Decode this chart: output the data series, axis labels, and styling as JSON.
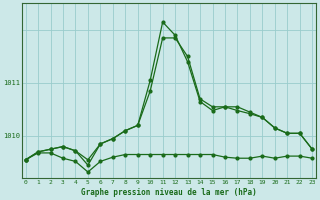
{
  "title": "Graphe pression niveau de la mer (hPa)",
  "background_color": "#cce8e8",
  "grid_color": "#99cccc",
  "line_color": "#1a6b1a",
  "x_ticks": [
    0,
    1,
    2,
    3,
    4,
    5,
    6,
    7,
    8,
    9,
    10,
    11,
    12,
    13,
    14,
    15,
    16,
    17,
    18,
    19,
    20,
    21,
    22,
    23
  ],
  "y_ticks": [
    1010,
    1011
  ],
  "ylim": [
    1009.2,
    1012.5
  ],
  "xlim": [
    -0.3,
    23.3
  ],
  "series1": [
    1009.55,
    1009.7,
    1009.75,
    1009.8,
    1009.72,
    1009.55,
    1009.85,
    1009.95,
    1010.1,
    1010.2,
    1010.85,
    1011.85,
    1011.85,
    1011.5,
    1010.7,
    1010.55,
    1010.55,
    1010.55,
    1010.45,
    1010.35,
    1010.15,
    1010.05,
    1010.05,
    1009.75
  ],
  "series2": [
    1009.55,
    1009.7,
    1009.75,
    1009.8,
    1009.72,
    1009.45,
    1009.85,
    1009.95,
    1010.1,
    1010.2,
    1011.05,
    1012.15,
    1011.9,
    1011.4,
    1010.65,
    1010.48,
    1010.55,
    1010.48,
    1010.42,
    1010.35,
    1010.15,
    1010.05,
    1010.05,
    1009.75
  ],
  "series3": [
    1009.55,
    1009.68,
    1009.68,
    1009.58,
    1009.52,
    1009.32,
    1009.52,
    1009.6,
    1009.65,
    1009.65,
    1009.65,
    1009.65,
    1009.65,
    1009.65,
    1009.65,
    1009.65,
    1009.6,
    1009.58,
    1009.58,
    1009.62,
    1009.58,
    1009.62,
    1009.62,
    1009.58
  ]
}
